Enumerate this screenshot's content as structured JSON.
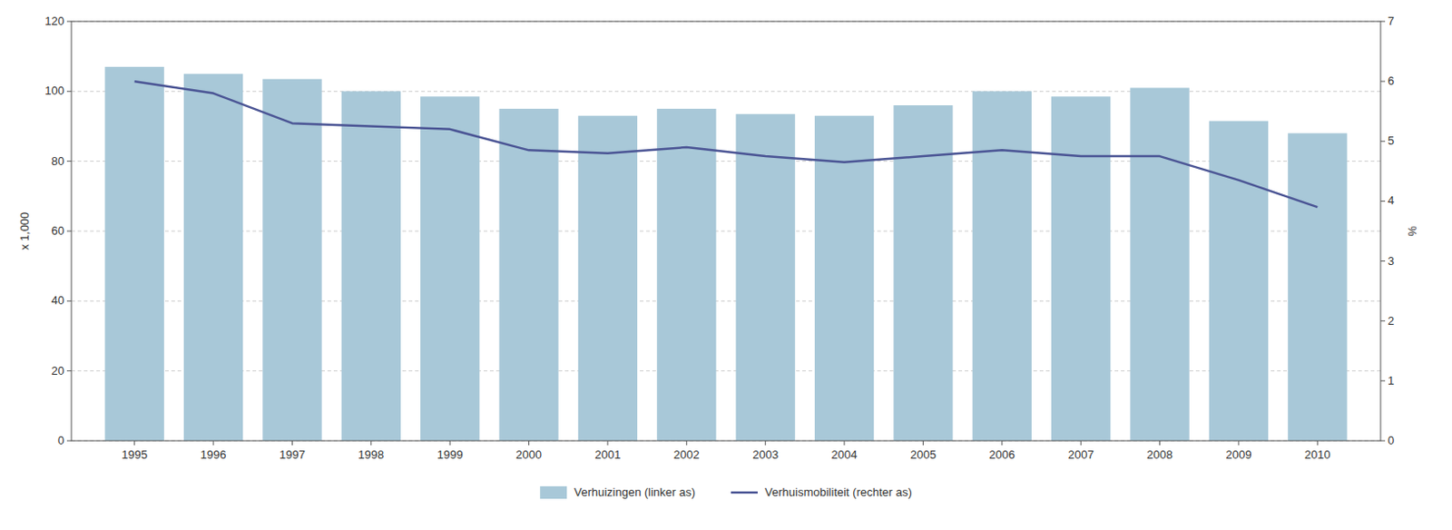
{
  "chart_data": {
    "type": "bar",
    "x": [
      1995,
      1996,
      1997,
      1998,
      1999,
      2000,
      2001,
      2002,
      2003,
      2004,
      2005,
      2006,
      2007,
      2008,
      2009,
      2010
    ],
    "xlim": [
      1994.2,
      2010.8
    ],
    "xticks": [
      1995,
      1996,
      1997,
      1998,
      1999,
      2000,
      2001,
      2002,
      2003,
      2004,
      2005,
      2006,
      2007,
      2008,
      2009,
      2010
    ],
    "series": [
      {
        "name": "Verhuizingen (linker as)",
        "type": "bar",
        "color": "#a8c8d8",
        "values": [
          107,
          105,
          103.5,
          100,
          98.5,
          95,
          93,
          95,
          93.5,
          93,
          96,
          100,
          98.5,
          101,
          91.5,
          88
        ]
      },
      {
        "name": "Verhuismobiliteit (rechter as)",
        "type": "line",
        "color": "#4a5494",
        "axis": "y2",
        "values": [
          6.0,
          5.8,
          5.3,
          5.25,
          5.2,
          4.85,
          4.8,
          4.9,
          4.75,
          4.65,
          4.75,
          4.85,
          4.75,
          4.75,
          4.35,
          3.9
        ]
      }
    ],
    "ylim": [
      0,
      120
    ],
    "yticks": [
      0,
      20,
      40,
      60,
      80,
      100,
      120
    ],
    "y2lim": [
      0,
      7
    ],
    "y2ticks": [
      0,
      1,
      2,
      3,
      4,
      5,
      6,
      7
    ],
    "y_label": "x 1,000",
    "y2_label": "%",
    "grid": true,
    "legend": "bottom"
  }
}
